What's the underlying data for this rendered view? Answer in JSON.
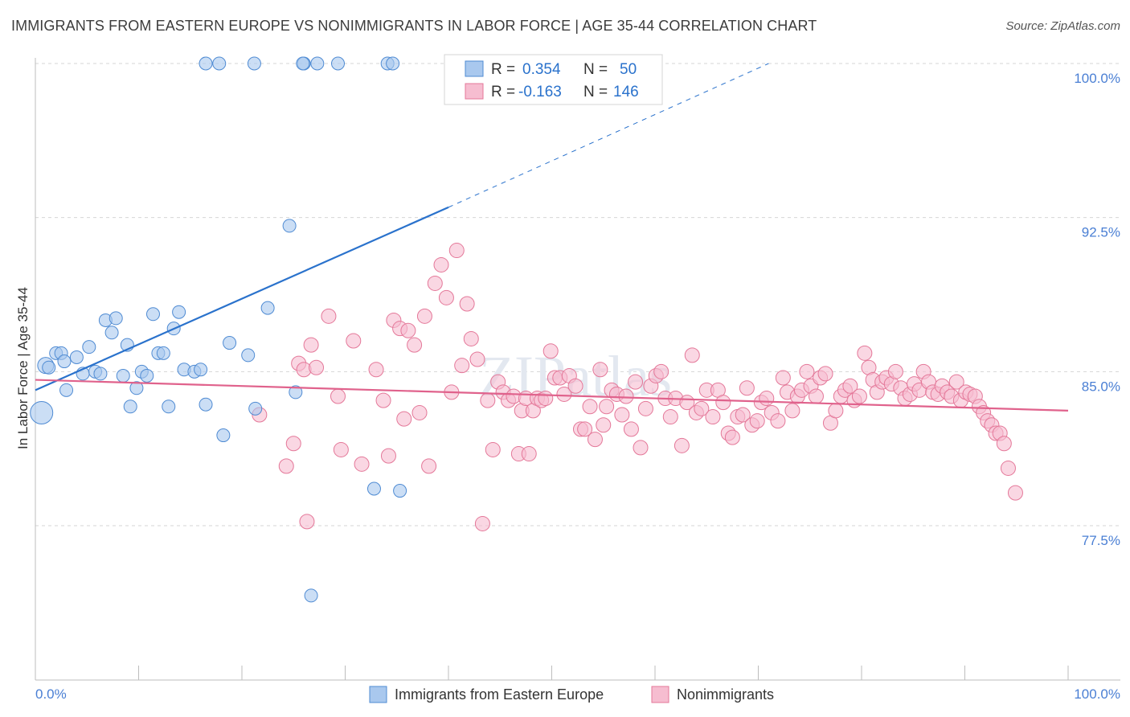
{
  "title": "IMMIGRANTS FROM EASTERN EUROPE VS NONIMMIGRANTS IN LABOR FORCE | AGE 35-44 CORRELATION CHART",
  "source": "Source: ZipAtlas.com",
  "watermark": "ZIPatlas",
  "colors": {
    "blue_fill": "#a9c8ee",
    "blue_stroke": "#4f8bd3",
    "blue_line": "#2a72cc",
    "pink_fill": "#f6bdd0",
    "pink_stroke": "#e47899",
    "pink_line": "#e0628c",
    "tick_text": "#4a7fd4",
    "grid": "#d6d6d6"
  },
  "stats_legend": {
    "r_label": "R =",
    "n_label": "N =",
    "blue": {
      "r": "0.354",
      "n": "50"
    },
    "pink": {
      "r": "-0.163",
      "n": "146"
    }
  },
  "bottom_legend": {
    "blue_label": "Immigrants from Eastern Europe",
    "pink_label": "Nonimmigrants"
  },
  "chart_data": {
    "type": "scatter",
    "title": "IMMIGRANTS FROM EASTERN EUROPE VS NONIMMIGRANTS IN LABOR FORCE | AGE 35-44 CORRELATION CHART",
    "xlabel": "",
    "ylabel": "In Labor Force | Age 35-44",
    "xlim": [
      0,
      100
    ],
    "ylim": [
      70.8,
      100.8
    ],
    "x_tick_labels": [
      "0.0%",
      "100.0%"
    ],
    "y_ticks": [
      77.5,
      85.0,
      92.5,
      100.0
    ],
    "y_tick_labels": [
      "77.5%",
      "85.0%",
      "92.5%",
      "100.0%"
    ],
    "series": [
      {
        "name": "Immigrants from Eastern Europe",
        "color": "blue",
        "r": 0.354,
        "n": 50,
        "trend": {
          "x0": 0,
          "y0": 84.1,
          "x1": 40,
          "y1": 93.0,
          "dash_x1": 71,
          "dash_y1": 100.0
        },
        "points": [
          [
            0.6,
            83.0,
            14
          ],
          [
            1.0,
            85.3,
            10
          ],
          [
            1.3,
            85.2,
            8
          ],
          [
            2.0,
            85.9,
            8
          ],
          [
            2.5,
            85.9,
            8
          ],
          [
            3.0,
            84.1,
            8
          ],
          [
            2.8,
            85.5,
            8
          ],
          [
            4.0,
            85.7,
            8
          ],
          [
            4.6,
            84.9,
            8
          ],
          [
            5.2,
            86.2,
            8
          ],
          [
            5.8,
            85.0,
            8
          ],
          [
            6.3,
            84.9,
            8
          ],
          [
            6.8,
            87.5,
            8
          ],
          [
            7.4,
            86.9,
            8
          ],
          [
            7.8,
            87.6,
            8
          ],
          [
            8.5,
            84.8,
            8
          ],
          [
            8.9,
            86.3,
            8
          ],
          [
            9.2,
            83.3,
            8
          ],
          [
            9.8,
            84.2,
            8
          ],
          [
            10.3,
            85.0,
            8
          ],
          [
            10.8,
            84.8,
            8
          ],
          [
            11.4,
            87.8,
            8
          ],
          [
            11.9,
            85.9,
            8
          ],
          [
            12.4,
            85.9,
            8
          ],
          [
            12.9,
            83.3,
            8
          ],
          [
            13.4,
            87.1,
            8
          ],
          [
            13.9,
            87.9,
            8
          ],
          [
            14.4,
            85.1,
            8
          ],
          [
            15.4,
            85.0,
            8
          ],
          [
            16.0,
            85.1,
            8
          ],
          [
            16.5,
            83.4,
            8
          ],
          [
            18.2,
            81.9,
            8
          ],
          [
            18.8,
            86.4,
            8
          ],
          [
            20.6,
            85.8,
            8
          ],
          [
            21.3,
            83.2,
            8
          ],
          [
            22.5,
            88.1,
            8
          ],
          [
            24.6,
            92.1,
            8
          ],
          [
            25.2,
            84.0,
            8
          ],
          [
            26.7,
            74.1,
            8
          ],
          [
            32.8,
            79.3,
            8
          ],
          [
            35.3,
            79.2,
            8
          ],
          [
            16.5,
            100.0,
            8
          ],
          [
            17.8,
            100.0,
            8
          ],
          [
            21.2,
            100.0,
            8
          ],
          [
            26.0,
            100.0,
            8
          ],
          [
            27.3,
            100.0,
            8
          ],
          [
            29.3,
            100.0,
            8
          ],
          [
            34.1,
            100.0,
            8
          ],
          [
            34.6,
            100.0,
            8
          ],
          [
            25.9,
            100.0,
            8
          ]
        ]
      },
      {
        "name": "Nonimmigrants",
        "color": "pink",
        "r": -0.163,
        "n": 146,
        "trend": {
          "x0": 0,
          "y0": 84.6,
          "x1": 100,
          "y1": 83.1
        },
        "points": [
          [
            21.7,
            82.9
          ],
          [
            24.3,
            80.4
          ],
          [
            25.0,
            81.5
          ],
          [
            25.5,
            85.4
          ],
          [
            26.0,
            85.1
          ],
          [
            26.3,
            77.7
          ],
          [
            26.7,
            86.3
          ],
          [
            27.2,
            85.2
          ],
          [
            28.4,
            87.7
          ],
          [
            29.3,
            83.8
          ],
          [
            29.6,
            81.2
          ],
          [
            30.8,
            86.5
          ],
          [
            31.6,
            80.5
          ],
          [
            33.0,
            85.1
          ],
          [
            33.7,
            83.6
          ],
          [
            34.2,
            80.9
          ],
          [
            34.7,
            87.5
          ],
          [
            35.3,
            87.1
          ],
          [
            35.7,
            82.7
          ],
          [
            36.1,
            87.0
          ],
          [
            36.7,
            86.3
          ],
          [
            37.2,
            83.0
          ],
          [
            37.7,
            87.7
          ],
          [
            38.1,
            80.4
          ],
          [
            38.7,
            89.3
          ],
          [
            39.3,
            90.2
          ],
          [
            39.8,
            88.6
          ],
          [
            40.3,
            84.0
          ],
          [
            40.8,
            90.9
          ],
          [
            41.3,
            85.3
          ],
          [
            41.8,
            88.3
          ],
          [
            42.2,
            86.6
          ],
          [
            42.8,
            85.6
          ],
          [
            43.3,
            77.6
          ],
          [
            43.8,
            83.6
          ],
          [
            44.3,
            81.2
          ],
          [
            44.8,
            84.5
          ],
          [
            45.3,
            84.0
          ],
          [
            45.8,
            83.6
          ],
          [
            46.3,
            83.8
          ],
          [
            46.8,
            81.0
          ],
          [
            47.1,
            83.1
          ],
          [
            47.5,
            83.7
          ],
          [
            47.8,
            81.0
          ],
          [
            48.2,
            83.1
          ],
          [
            48.6,
            83.7
          ],
          [
            49.0,
            83.6
          ],
          [
            49.4,
            83.7
          ],
          [
            49.9,
            86.0
          ],
          [
            50.3,
            84.7
          ],
          [
            50.8,
            84.7
          ],
          [
            51.2,
            83.9
          ],
          [
            51.7,
            84.8
          ],
          [
            52.3,
            84.3
          ],
          [
            52.8,
            82.2
          ],
          [
            53.2,
            82.2
          ],
          [
            53.7,
            83.3
          ],
          [
            54.2,
            81.7
          ],
          [
            54.7,
            85.1
          ],
          [
            55.0,
            82.4
          ],
          [
            55.3,
            83.3
          ],
          [
            55.8,
            84.1
          ],
          [
            56.3,
            83.9
          ],
          [
            56.8,
            82.9
          ],
          [
            57.2,
            83.8
          ],
          [
            57.7,
            82.2
          ],
          [
            58.1,
            84.5
          ],
          [
            58.6,
            81.3
          ],
          [
            59.1,
            83.2
          ],
          [
            59.6,
            84.3
          ],
          [
            60.1,
            84.8
          ],
          [
            60.6,
            85.0
          ],
          [
            61.0,
            83.7
          ],
          [
            61.5,
            82.8
          ],
          [
            62.0,
            83.7
          ],
          [
            62.6,
            81.4
          ],
          [
            63.1,
            83.5
          ],
          [
            63.6,
            85.8
          ],
          [
            64.0,
            83.0
          ],
          [
            64.5,
            83.2
          ],
          [
            65.0,
            84.1
          ],
          [
            65.6,
            82.8
          ],
          [
            66.1,
            84.1
          ],
          [
            66.6,
            83.5
          ],
          [
            67.1,
            82.0
          ],
          [
            67.5,
            81.8
          ],
          [
            68.0,
            82.8
          ],
          [
            68.5,
            82.9
          ],
          [
            68.9,
            84.2
          ],
          [
            69.4,
            82.4
          ],
          [
            69.9,
            82.6
          ],
          [
            70.3,
            83.5
          ],
          [
            70.8,
            83.7
          ],
          [
            71.3,
            83.0
          ],
          [
            71.9,
            82.6
          ],
          [
            72.4,
            84.7
          ],
          [
            72.8,
            84.0
          ],
          [
            73.3,
            83.1
          ],
          [
            73.8,
            83.8
          ],
          [
            74.2,
            84.1
          ],
          [
            74.7,
            85.0
          ],
          [
            75.1,
            84.3
          ],
          [
            75.6,
            83.8
          ],
          [
            76.0,
            84.7
          ],
          [
            76.5,
            84.9
          ],
          [
            77.0,
            82.5
          ],
          [
            77.5,
            83.1
          ],
          [
            78.0,
            83.8
          ],
          [
            78.4,
            84.1
          ],
          [
            78.9,
            84.3
          ],
          [
            79.3,
            83.6
          ],
          [
            79.8,
            83.8
          ],
          [
            80.3,
            85.9
          ],
          [
            80.7,
            85.2
          ],
          [
            81.1,
            84.6
          ],
          [
            81.5,
            84.0
          ],
          [
            82.0,
            84.5
          ],
          [
            82.4,
            84.7
          ],
          [
            82.9,
            84.4
          ],
          [
            83.3,
            85.0
          ],
          [
            83.8,
            84.2
          ],
          [
            84.2,
            83.7
          ],
          [
            84.7,
            83.9
          ],
          [
            85.1,
            84.4
          ],
          [
            85.6,
            84.1
          ],
          [
            86.0,
            85.0
          ],
          [
            86.5,
            84.5
          ],
          [
            86.9,
            84.0
          ],
          [
            87.4,
            83.9
          ],
          [
            87.8,
            84.3
          ],
          [
            88.3,
            84.0
          ],
          [
            88.7,
            83.8
          ],
          [
            89.2,
            84.5
          ],
          [
            89.6,
            83.6
          ],
          [
            90.1,
            84.0
          ],
          [
            90.5,
            83.9
          ],
          [
            91.0,
            83.8
          ],
          [
            91.4,
            83.3
          ],
          [
            91.8,
            83.0
          ],
          [
            92.2,
            82.6
          ],
          [
            92.6,
            82.4
          ],
          [
            93.0,
            82.0
          ],
          [
            93.4,
            82.0
          ],
          [
            93.8,
            81.5
          ],
          [
            94.2,
            80.3
          ],
          [
            94.9,
            79.1
          ]
        ]
      }
    ]
  }
}
